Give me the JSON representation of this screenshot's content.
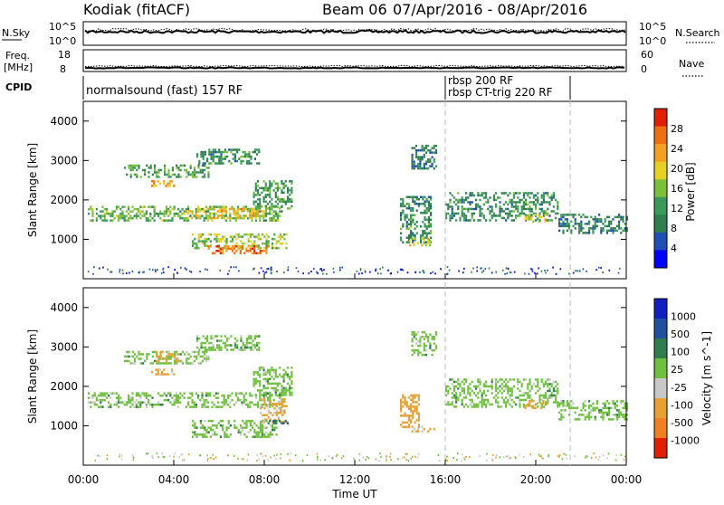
{
  "header": {
    "station": "Kodiak (fitACF)",
    "beam": "Beam 06",
    "daterange": "07/Apr/2016 - 08/Apr/2016"
  },
  "strips": {
    "nsky_label": "N.Sky",
    "nsky_ticks": [
      "10^5",
      "10^0"
    ],
    "nsearch_label": "N.Search",
    "nsearch_ticks": [
      "10^5",
      "10^0"
    ],
    "freq_label": "Freq.",
    "freq_unit": "[MHz]",
    "freq_ticks": [
      "18",
      "8"
    ],
    "nave_label": "Nave",
    "nave_ticks": [
      "60",
      "0"
    ],
    "cpid_label": "CPID",
    "cpid_segments": [
      {
        "label": "normalsound (fast) 157 RF",
        "start_h": 0,
        "end_h": 16
      },
      {
        "label": "rbsp 200 RF",
        "start_h": 16,
        "end_h": 21.5
      },
      {
        "label": "rbsp CT-trig 220 RF",
        "start_h": 16,
        "end_h": 21.5
      }
    ]
  },
  "axes": {
    "ylabel": "Slant Range [km]",
    "yticks": [
      "4000",
      "3000",
      "2000",
      "1000"
    ],
    "xlabel": "Time UT",
    "xticks": [
      "00:00",
      "04:00",
      "08:00",
      "12:00",
      "16:00",
      "20:00",
      "00:00"
    ]
  },
  "colorbars": {
    "power": {
      "label": "Power [dB]",
      "ticks": [
        "28",
        "24",
        "20",
        "16",
        "12",
        "8",
        "4"
      ],
      "colors": [
        "#0000ff",
        "#1e4fb4",
        "#2e7d4f",
        "#3a9a5a",
        "#7cc03a",
        "#e8d020",
        "#f5a020",
        "#f07010",
        "#e02000"
      ]
    },
    "velocity": {
      "label": "Velocity [m s^-1]",
      "ticks": [
        "1000",
        "500",
        "100",
        "25",
        "-25",
        "-100",
        "-500",
        "-1000"
      ],
      "colors": [
        "#1020c0",
        "#2050a0",
        "#2e7d4f",
        "#70c040",
        "#c8c8c8",
        "#e8a030",
        "#f08020",
        "#e02000"
      ]
    }
  },
  "chart_data": [
    {
      "type": "heatmap",
      "name": "power",
      "x_range_hours": [
        0,
        24
      ],
      "y_range_km": [
        0,
        4500
      ],
      "regions": [
        {
          "t0": 1.8,
          "t1": 5.5,
          "r0": 2600,
          "r1": 2900,
          "value_db": 12
        },
        {
          "t0": 3.0,
          "t1": 4.0,
          "r0": 2350,
          "r1": 2500,
          "value_db": 24
        },
        {
          "t0": 5.0,
          "t1": 7.8,
          "r0": 2900,
          "r1": 3300,
          "value_db": 10
        },
        {
          "t0": 0.2,
          "t1": 8.8,
          "r0": 1450,
          "r1": 1850,
          "value_db": 14
        },
        {
          "t0": 4.5,
          "t1": 8.0,
          "r0": 1550,
          "r1": 1800,
          "value_db": 22
        },
        {
          "t0": 7.5,
          "t1": 9.2,
          "r0": 1800,
          "r1": 2500,
          "value_db": 12
        },
        {
          "t0": 4.8,
          "t1": 9.0,
          "r0": 800,
          "r1": 1150,
          "value_db": 16
        },
        {
          "t0": 5.5,
          "t1": 8.2,
          "r0": 650,
          "r1": 850,
          "value_db": 28
        },
        {
          "t0": 14.0,
          "t1": 15.4,
          "r0": 900,
          "r1": 2100,
          "value_db": 10
        },
        {
          "t0": 14.4,
          "t1": 15.3,
          "r0": 850,
          "r1": 1050,
          "value_db": 20
        },
        {
          "t0": 14.5,
          "t1": 15.6,
          "r0": 2800,
          "r1": 3400,
          "value_db": 8
        },
        {
          "t0": 16.0,
          "t1": 21.0,
          "r0": 1500,
          "r1": 2200,
          "value_db": 10
        },
        {
          "t0": 19.5,
          "t1": 20.5,
          "r0": 1450,
          "r1": 1650,
          "value_db": 18
        },
        {
          "t0": 21.0,
          "t1": 24.0,
          "r0": 1150,
          "r1": 1650,
          "value_db": 9
        }
      ]
    },
    {
      "type": "heatmap",
      "name": "velocity",
      "x_range_hours": [
        0,
        24
      ],
      "y_range_km": [
        0,
        4500
      ],
      "regions": [
        {
          "t0": 1.8,
          "t1": 5.5,
          "r0": 2600,
          "r1": 2900,
          "value_ms": 0
        },
        {
          "t0": 3.2,
          "t1": 4.2,
          "r0": 2650,
          "r1": 2900,
          "value_ms": -120
        },
        {
          "t0": 3.0,
          "t1": 4.0,
          "r0": 2300,
          "r1": 2450,
          "value_ms": -120
        },
        {
          "t0": 5.0,
          "t1": 7.8,
          "r0": 2900,
          "r1": 3300,
          "value_ms": 0
        },
        {
          "t0": 0.2,
          "t1": 8.8,
          "r0": 1450,
          "r1": 1850,
          "value_ms": 0
        },
        {
          "t0": 7.5,
          "t1": 9.2,
          "r0": 1800,
          "r1": 2500,
          "value_ms": 0
        },
        {
          "t0": 7.8,
          "t1": 9.0,
          "r0": 1100,
          "r1": 1700,
          "value_ms": -120
        },
        {
          "t0": 4.8,
          "t1": 8.5,
          "r0": 700,
          "r1": 1150,
          "value_ms": 0
        },
        {
          "t0": 8.2,
          "t1": 9.0,
          "r0": 1050,
          "r1": 1150,
          "value_ms": 80
        },
        {
          "t0": 14.0,
          "t1": 14.8,
          "r0": 950,
          "r1": 1800,
          "value_ms": -150
        },
        {
          "t0": 14.5,
          "t1": 15.5,
          "r0": 850,
          "r1": 1000,
          "value_ms": -120
        },
        {
          "t0": 14.5,
          "t1": 15.6,
          "r0": 2800,
          "r1": 3400,
          "value_ms": 0
        },
        {
          "t0": 16.0,
          "t1": 21.0,
          "r0": 1500,
          "r1": 2200,
          "value_ms": 0
        },
        {
          "t0": 19.5,
          "t1": 20.5,
          "r0": 1450,
          "r1": 1650,
          "value_ms": -150
        },
        {
          "t0": 21.0,
          "t1": 24.0,
          "r0": 1150,
          "r1": 1650,
          "value_ms": 0
        }
      ]
    }
  ]
}
